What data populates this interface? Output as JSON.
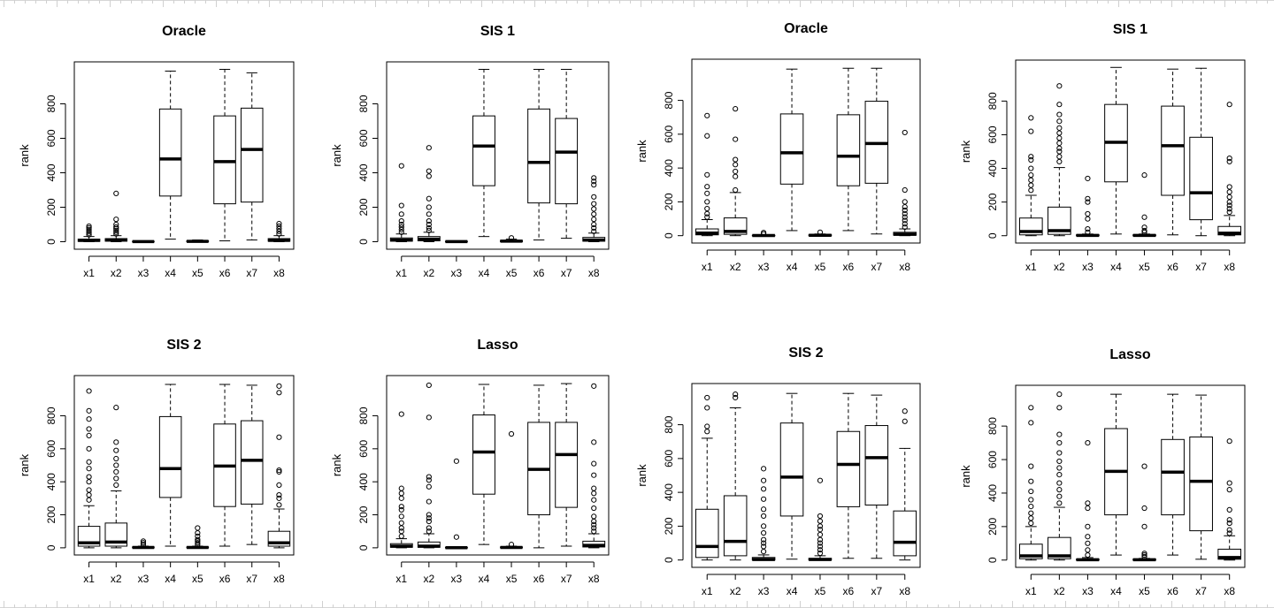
{
  "chart_data": [
    {
      "type": "boxplot",
      "title": "Oracle",
      "ylabel": "rank",
      "ylim": [
        0,
        1000
      ],
      "yticks": [
        0,
        200,
        400,
        600,
        800
      ],
      "categories": [
        "x1",
        "x2",
        "x3",
        "x4",
        "x5",
        "x6",
        "x7",
        "x8"
      ],
      "boxes": [
        {
          "min": 0,
          "q1": 2,
          "median": 8,
          "q3": 15,
          "max": 30,
          "outliers": [
            40,
            50,
            60,
            70,
            80,
            90
          ]
        },
        {
          "min": 0,
          "q1": 3,
          "median": 10,
          "q3": 18,
          "max": 35,
          "outliers": [
            45,
            55,
            65,
            75,
            85,
            100,
            130,
            280
          ]
        },
        {
          "min": 0,
          "q1": 0,
          "median": 1,
          "q3": 2,
          "max": 5,
          "outliers": []
        },
        {
          "min": 15,
          "q1": 265,
          "median": 480,
          "q3": 770,
          "max": 990,
          "outliers": []
        },
        {
          "min": 0,
          "q1": 0,
          "median": 2,
          "q3": 5,
          "max": 10,
          "outliers": []
        },
        {
          "min": 5,
          "q1": 220,
          "median": 465,
          "q3": 730,
          "max": 1000,
          "outliers": []
        },
        {
          "min": 10,
          "q1": 230,
          "median": 535,
          "q3": 775,
          "max": 980,
          "outliers": []
        },
        {
          "min": 0,
          "q1": 3,
          "median": 8,
          "q3": 18,
          "max": 35,
          "outliers": [
            45,
            60,
            75,
            90,
            105
          ]
        }
      ]
    },
    {
      "type": "boxplot",
      "title": "SIS 1",
      "ylabel": "rank",
      "ylim": [
        0,
        1000
      ],
      "yticks": [
        0,
        200,
        400,
        600,
        800
      ],
      "categories": [
        "x1",
        "x2",
        "x3",
        "x4",
        "x5",
        "x6",
        "x7",
        "x8"
      ],
      "boxes": [
        {
          "min": 0,
          "q1": 3,
          "median": 10,
          "q3": 22,
          "max": 45,
          "outliers": [
            55,
            70,
            85,
            100,
            120,
            160,
            210,
            440
          ]
        },
        {
          "min": 0,
          "q1": 5,
          "median": 15,
          "q3": 30,
          "max": 55,
          "outliers": [
            65,
            80,
            100,
            120,
            160,
            200,
            250,
            380,
            410,
            545
          ]
        },
        {
          "min": 0,
          "q1": 0,
          "median": 1,
          "q3": 2,
          "max": 5,
          "outliers": []
        },
        {
          "min": 30,
          "q1": 325,
          "median": 555,
          "q3": 730,
          "max": 1000,
          "outliers": []
        },
        {
          "min": 0,
          "q1": 0,
          "median": 3,
          "q3": 8,
          "max": 15,
          "outliers": [
            22
          ]
        },
        {
          "min": 10,
          "q1": 225,
          "median": 460,
          "q3": 770,
          "max": 1000,
          "outliers": []
        },
        {
          "min": 20,
          "q1": 220,
          "median": 520,
          "q3": 715,
          "max": 1000,
          "outliers": []
        },
        {
          "min": 0,
          "q1": 3,
          "median": 10,
          "q3": 25,
          "max": 50,
          "outliers": [
            60,
            80,
            100,
            130,
            160,
            190,
            220,
            260,
            330,
            350,
            370
          ]
        }
      ]
    },
    {
      "type": "boxplot",
      "title": "Oracle",
      "ylabel": "rank",
      "ylim": [
        0,
        1000
      ],
      "yticks": [
        0,
        200,
        400,
        600,
        800
      ],
      "categories": [
        "x1",
        "x2",
        "x3",
        "x4",
        "x5",
        "x6",
        "x7",
        "x8"
      ],
      "boxes": [
        {
          "min": 0,
          "q1": 5,
          "median": 15,
          "q3": 40,
          "max": 95,
          "outliers": [
            110,
            130,
            160,
            200,
            250,
            290,
            360,
            590,
            710
          ]
        },
        {
          "min": 0,
          "q1": 8,
          "median": 25,
          "q3": 105,
          "max": 255,
          "outliers": [
            270,
            350,
            380,
            420,
            450,
            570,
            750
          ]
        },
        {
          "min": 0,
          "q1": 0,
          "median": 1,
          "q3": 2,
          "max": 5,
          "outliers": [
            10,
            18
          ]
        },
        {
          "min": 30,
          "q1": 305,
          "median": 490,
          "q3": 720,
          "max": 985,
          "outliers": []
        },
        {
          "min": 0,
          "q1": 0,
          "median": 2,
          "q3": 5,
          "max": 10,
          "outliers": [
            20
          ]
        },
        {
          "min": 30,
          "q1": 295,
          "median": 470,
          "q3": 715,
          "max": 990,
          "outliers": []
        },
        {
          "min": 10,
          "q1": 310,
          "median": 545,
          "q3": 795,
          "max": 990,
          "outliers": []
        },
        {
          "min": 0,
          "q1": 3,
          "median": 8,
          "q3": 20,
          "max": 40,
          "outliers": [
            50,
            70,
            90,
            110,
            130,
            150,
            170,
            200,
            270,
            610
          ]
        }
      ]
    },
    {
      "type": "boxplot",
      "title": "SIS 1",
      "ylabel": "rank",
      "ylim": [
        0,
        1000
      ],
      "yticks": [
        0,
        200,
        400,
        600,
        800
      ],
      "categories": [
        "x1",
        "x2",
        "x3",
        "x4",
        "x5",
        "x6",
        "x7",
        "x8"
      ],
      "boxes": [
        {
          "min": 0,
          "q1": 5,
          "median": 25,
          "q3": 105,
          "max": 240,
          "outliers": [
            270,
            300,
            330,
            360,
            400,
            450,
            470,
            620,
            700
          ]
        },
        {
          "min": 0,
          "q1": 8,
          "median": 30,
          "q3": 170,
          "max": 405,
          "outliers": [
            440,
            470,
            500,
            520,
            550,
            580,
            610,
            640,
            680,
            720,
            780,
            890
          ]
        },
        {
          "min": 0,
          "q1": 0,
          "median": 2,
          "q3": 5,
          "max": 10,
          "outliers": [
            20,
            40,
            100,
            130,
            200,
            220,
            340
          ]
        },
        {
          "min": 10,
          "q1": 320,
          "median": 555,
          "q3": 780,
          "max": 1000,
          "outliers": []
        },
        {
          "min": 0,
          "q1": 0,
          "median": 2,
          "q3": 5,
          "max": 10,
          "outliers": [
            20,
            30,
            50,
            110,
            360
          ]
        },
        {
          "min": 5,
          "q1": 240,
          "median": 535,
          "q3": 770,
          "max": 990,
          "outliers": []
        },
        {
          "min": 0,
          "q1": 95,
          "median": 255,
          "q3": 585,
          "max": 995,
          "outliers": []
        },
        {
          "min": 0,
          "q1": 5,
          "median": 15,
          "q3": 55,
          "max": 120,
          "outliers": [
            140,
            160,
            180,
            200,
            230,
            260,
            290,
            440,
            460,
            780
          ]
        }
      ]
    },
    {
      "type": "boxplot",
      "title": "SIS 2",
      "ylabel": "rank",
      "ylim": [
        0,
        1000
      ],
      "yticks": [
        0,
        200,
        400,
        600,
        800
      ],
      "categories": [
        "x1",
        "x2",
        "x3",
        "x4",
        "x5",
        "x6",
        "x7",
        "x8"
      ],
      "boxes": [
        {
          "min": 0,
          "q1": 10,
          "median": 30,
          "q3": 130,
          "max": 255,
          "outliers": [
            290,
            320,
            350,
            400,
            430,
            480,
            520,
            600,
            680,
            720,
            780,
            830,
            950
          ]
        },
        {
          "min": 0,
          "q1": 10,
          "median": 35,
          "q3": 150,
          "max": 345,
          "outliers": [
            380,
            420,
            460,
            500,
            540,
            590,
            640,
            850
          ]
        },
        {
          "min": 0,
          "q1": 0,
          "median": 2,
          "q3": 5,
          "max": 10,
          "outliers": [
            20,
            30,
            40
          ]
        },
        {
          "min": 10,
          "q1": 305,
          "median": 480,
          "q3": 795,
          "max": 990,
          "outliers": []
        },
        {
          "min": 0,
          "q1": 0,
          "median": 2,
          "q3": 5,
          "max": 10,
          "outliers": [
            20,
            30,
            40,
            50,
            70,
            90,
            120
          ]
        },
        {
          "min": 10,
          "q1": 250,
          "median": 495,
          "q3": 750,
          "max": 990,
          "outliers": []
        },
        {
          "min": 20,
          "q1": 265,
          "median": 530,
          "q3": 770,
          "max": 985,
          "outliers": []
        },
        {
          "min": 0,
          "q1": 10,
          "median": 30,
          "q3": 100,
          "max": 235,
          "outliers": [
            260,
            300,
            320,
            380,
            460,
            470,
            670,
            940,
            980
          ]
        }
      ]
    },
    {
      "type": "boxplot",
      "title": "Lasso",
      "ylabel": "rank",
      "ylim": [
        0,
        1000
      ],
      "yticks": [
        0,
        200,
        400,
        600,
        800
      ],
      "categories": [
        "x1",
        "x2",
        "x3",
        "x4",
        "x5",
        "x6",
        "x7",
        "x8"
      ],
      "boxes": [
        {
          "min": 0,
          "q1": 3,
          "median": 10,
          "q3": 25,
          "max": 55,
          "outliers": [
            70,
            100,
            120,
            150,
            190,
            230,
            250,
            300,
            330,
            360,
            810
          ]
        },
        {
          "min": 0,
          "q1": 3,
          "median": 10,
          "q3": 35,
          "max": 85,
          "outliers": [
            100,
            120,
            160,
            180,
            200,
            280,
            370,
            410,
            430,
            790,
            985
          ]
        },
        {
          "min": 0,
          "q1": 0,
          "median": 1,
          "q3": 2,
          "max": 5,
          "outliers": [
            65,
            525
          ]
        },
        {
          "min": 20,
          "q1": 325,
          "median": 580,
          "q3": 805,
          "max": 990,
          "outliers": []
        },
        {
          "min": 0,
          "q1": 0,
          "median": 2,
          "q3": 5,
          "max": 10,
          "outliers": [
            20,
            690
          ]
        },
        {
          "min": 0,
          "q1": 200,
          "median": 475,
          "q3": 760,
          "max": 985,
          "outliers": []
        },
        {
          "min": 10,
          "q1": 245,
          "median": 565,
          "q3": 760,
          "max": 995,
          "outliers": []
        },
        {
          "min": 0,
          "q1": 5,
          "median": 15,
          "q3": 40,
          "max": 85,
          "outliers": [
            100,
            120,
            140,
            160,
            190,
            240,
            290,
            330,
            360,
            440,
            510,
            640,
            980
          ]
        }
      ]
    },
    {
      "type": "boxplot",
      "title": "SIS 2",
      "ylabel": "rank",
      "ylim": [
        0,
        1000
      ],
      "yticks": [
        0,
        200,
        400,
        600,
        800
      ],
      "categories": [
        "x1",
        "x2",
        "x3",
        "x4",
        "x5",
        "x6",
        "x7",
        "x8"
      ],
      "boxes": [
        {
          "min": 0,
          "q1": 15,
          "median": 80,
          "q3": 300,
          "max": 720,
          "outliers": [
            760,
            790,
            900,
            960
          ]
        },
        {
          "min": 0,
          "q1": 25,
          "median": 110,
          "q3": 380,
          "max": 900,
          "outliers": [
            960,
            980
          ]
        },
        {
          "min": 0,
          "q1": 0,
          "median": 3,
          "q3": 15,
          "max": 30,
          "outliers": [
            50,
            80,
            100,
            120,
            160,
            200,
            260,
            300,
            360,
            420,
            470,
            540
          ]
        },
        {
          "min": 5,
          "q1": 260,
          "median": 490,
          "q3": 810,
          "max": 985,
          "outliers": []
        },
        {
          "min": 0,
          "q1": 0,
          "median": 3,
          "q3": 10,
          "max": 25,
          "outliers": [
            40,
            60,
            80,
            100,
            120,
            150,
            180,
            200,
            230,
            260,
            470
          ]
        },
        {
          "min": 10,
          "q1": 315,
          "median": 565,
          "q3": 760,
          "max": 985,
          "outliers": []
        },
        {
          "min": 10,
          "q1": 325,
          "median": 605,
          "q3": 795,
          "max": 975,
          "outliers": []
        },
        {
          "min": 0,
          "q1": 25,
          "median": 105,
          "q3": 290,
          "max": 660,
          "outliers": [
            820,
            880
          ]
        }
      ]
    },
    {
      "type": "boxplot",
      "title": "Lasso",
      "ylabel": "rank",
      "ylim": [
        0,
        1000
      ],
      "yticks": [
        0,
        200,
        400,
        600,
        800
      ],
      "categories": [
        "x1",
        "x2",
        "x3",
        "x4",
        "x5",
        "x6",
        "x7",
        "x8"
      ],
      "boxes": [
        {
          "min": 0,
          "q1": 8,
          "median": 25,
          "q3": 95,
          "max": 200,
          "outliers": [
            220,
            250,
            280,
            320,
            360,
            410,
            470,
            560,
            820,
            910
          ]
        },
        {
          "min": 0,
          "q1": 8,
          "median": 25,
          "q3": 135,
          "max": 315,
          "outliers": [
            340,
            380,
            420,
            460,
            510,
            550,
            590,
            640,
            700,
            750,
            910,
            990
          ]
        },
        {
          "min": 0,
          "q1": 0,
          "median": 2,
          "q3": 5,
          "max": 15,
          "outliers": [
            30,
            60,
            100,
            140,
            200,
            310,
            340,
            700
          ]
        },
        {
          "min": 30,
          "q1": 270,
          "median": 530,
          "q3": 785,
          "max": 990,
          "outliers": []
        },
        {
          "min": 0,
          "q1": 0,
          "median": 2,
          "q3": 5,
          "max": 10,
          "outliers": [
            20,
            30,
            40,
            200,
            310,
            560
          ]
        },
        {
          "min": 30,
          "q1": 270,
          "median": 525,
          "q3": 720,
          "max": 990,
          "outliers": []
        },
        {
          "min": 5,
          "q1": 175,
          "median": 470,
          "q3": 735,
          "max": 985,
          "outliers": []
        },
        {
          "min": 0,
          "q1": 5,
          "median": 15,
          "q3": 65,
          "max": 145,
          "outliers": [
            160,
            180,
            220,
            240,
            300,
            420,
            460,
            710
          ]
        }
      ]
    }
  ]
}
